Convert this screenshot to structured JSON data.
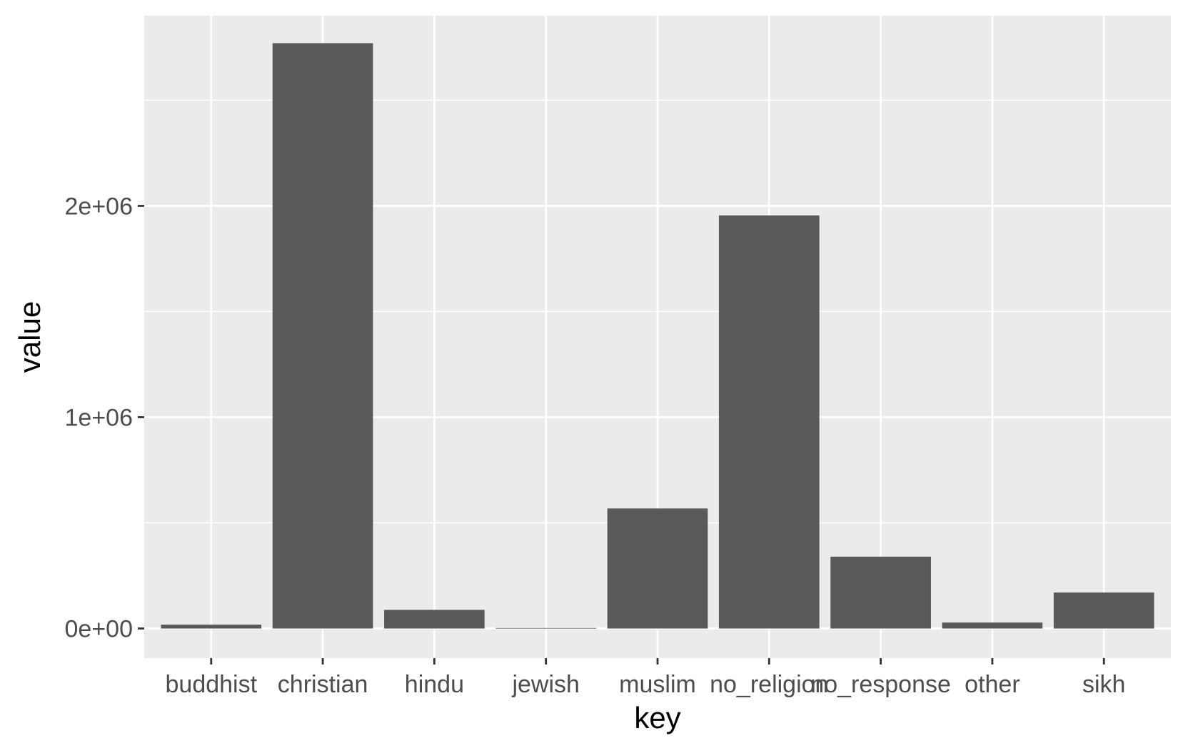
{
  "chart_data": {
    "type": "bar",
    "title": "",
    "xlabel": "key",
    "ylabel": "value",
    "categories": [
      "buddhist",
      "christian",
      "hindu",
      "jewish",
      "muslim",
      "no_religion",
      "no_response",
      "other",
      "sikh"
    ],
    "values": [
      18000,
      2770000,
      88000,
      2500,
      568000,
      1955000,
      340000,
      28000,
      170000
    ],
    "ylim": [
      -140000,
      2900000
    ],
    "yticks": [
      0,
      1000000,
      2000000
    ],
    "ytick_labels": [
      "0e+00",
      "1e+06",
      "2e+06"
    ],
    "grid": true,
    "legend": "none",
    "colors": {
      "panel_background": "#ebebeb",
      "grid": "#ffffff",
      "bar": "#595959",
      "tick_text": "#4d4d4d",
      "tick_mark": "#333333",
      "axis_title": "#000000"
    }
  }
}
